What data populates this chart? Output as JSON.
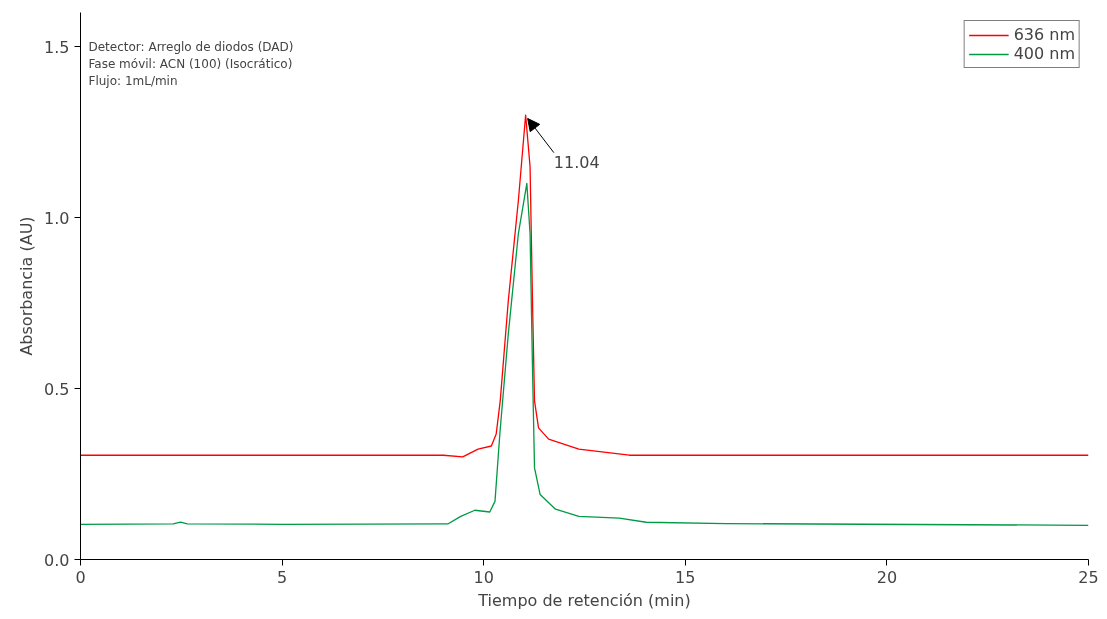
{
  "chart_data": {
    "type": "line",
    "xlabel": "Tiempo de retención (min)",
    "ylabel": "Absorbancia (AU)",
    "xlim": [
      0,
      25
    ],
    "ylim": [
      0,
      1.6
    ],
    "xticks": [
      0,
      5,
      10,
      15,
      20,
      25
    ],
    "yticks": [
      {
        "value": 0,
        "label": "0.0"
      },
      {
        "value": 0.5,
        "label": "0.5"
      },
      {
        "value": 1,
        "label": "1.0"
      },
      {
        "value": 1.5,
        "label": "1.5"
      }
    ],
    "grid": false,
    "legend": "top right",
    "line_style": "solid",
    "marker": "none",
    "series": [
      {
        "name": "636 nm",
        "color": "#ff0000",
        "x": [
          0,
          5,
          9.0,
          9.48,
          9.86,
          10.19,
          10.31,
          10.41,
          10.61,
          10.86,
          11.04,
          11.15,
          11.21,
          11.26,
          11.36,
          11.61,
          12.36,
          13.61,
          15,
          20,
          25
        ],
        "values": [
          0.305,
          0.305,
          0.305,
          0.3,
          0.323,
          0.332,
          0.367,
          0.464,
          0.757,
          1.05,
          1.3,
          1.149,
          0.757,
          0.464,
          0.385,
          0.352,
          0.323,
          0.305,
          0.305,
          0.305,
          0.305
        ]
      },
      {
        "name": "400 nm",
        "color": "#009944",
        "x": [
          0,
          2.3,
          2.48,
          2.65,
          5,
          9.11,
          9.43,
          9.78,
          10.15,
          10.28,
          10.4,
          10.61,
          10.86,
          11.07,
          11.15,
          11.21,
          11.26,
          11.4,
          11.78,
          12.36,
          13.36,
          14.03,
          16,
          25
        ],
        "values": [
          0.103,
          0.104,
          0.109,
          0.104,
          0.103,
          0.104,
          0.126,
          0.144,
          0.139,
          0.17,
          0.367,
          0.66,
          0.953,
          1.1,
          0.953,
          0.561,
          0.268,
          0.19,
          0.147,
          0.126,
          0.121,
          0.109,
          0.105,
          0.1
        ]
      }
    ],
    "annotations": [
      "Detector: Arreglo de diodos (DAD)",
      "Fase móvil: ACN (100) (Isocrático)",
      "Flujo: 1mL/min",
      {
        "text": "11.04",
        "x": 11.04,
        "y": 1.3
      }
    ]
  }
}
